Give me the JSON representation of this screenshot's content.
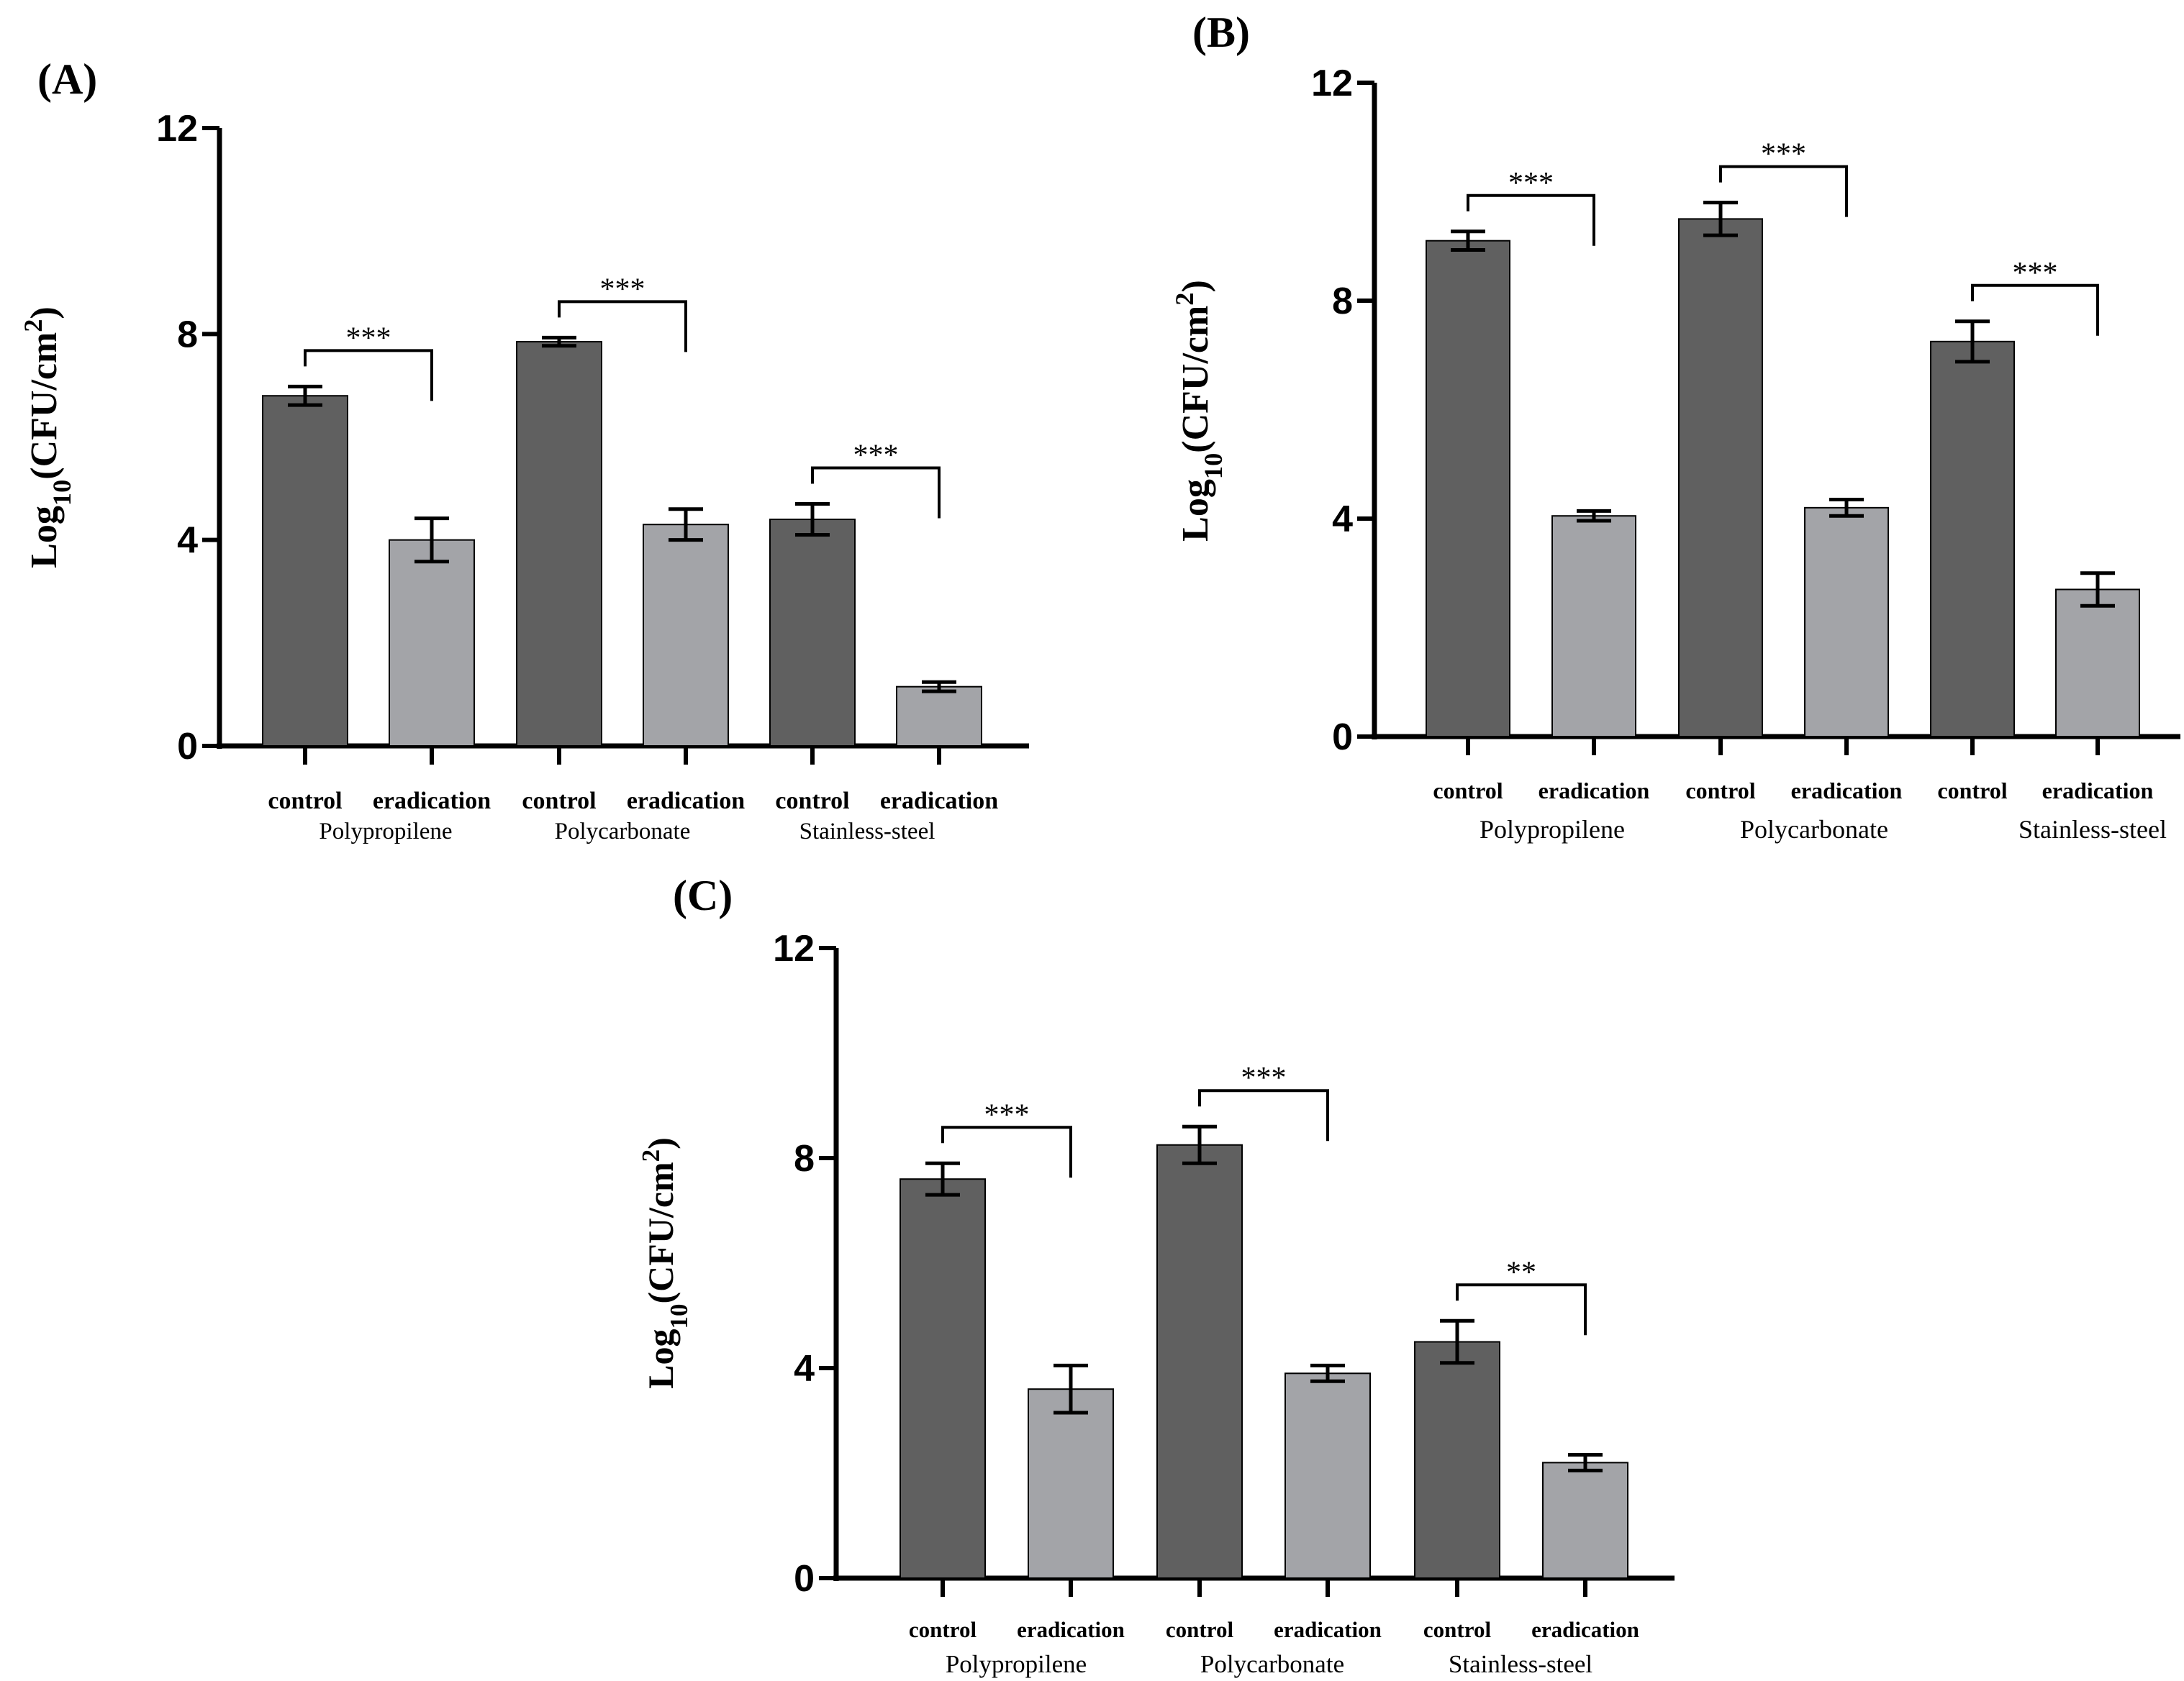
{
  "figure": {
    "background": "#ffffff"
  },
  "colors": {
    "control": "#606060",
    "eradication": "#a3a4a8",
    "axis": "#000000"
  },
  "chart_data": [
    {
      "panel": "(A)",
      "type": "bar",
      "ylabel": {
        "main": "Log",
        "sub": "10",
        "unit": "(CFU/cm",
        "sup": "2",
        "close": ")"
      },
      "ylim": [
        0,
        12
      ],
      "yticks": [
        "0",
        "4",
        "8",
        "12"
      ],
      "categories": [
        "control",
        "eradication",
        "control",
        "eradication",
        "control",
        "eradication"
      ],
      "groups": [
        "Polypropilene",
        "Polycarbonate",
        "Stainless-steel"
      ],
      "values": [
        6.8,
        4.0,
        7.85,
        4.3,
        4.4,
        1.15
      ],
      "errors": [
        0.18,
        0.42,
        0.08,
        0.3,
        0.3,
        0.09
      ],
      "significance": [
        "***",
        "***",
        "***"
      ]
    },
    {
      "panel": "(B)",
      "type": "bar",
      "ylabel": {
        "main": "Log",
        "sub": "10",
        "unit": "(CFU/cm",
        "sup": "2",
        "close": ")"
      },
      "ylim": [
        0,
        12
      ],
      "yticks": [
        "0",
        "4",
        "8",
        "12"
      ],
      "categories": [
        "control",
        "eradication",
        "control",
        "eradication",
        "control",
        "eradication"
      ],
      "groups": [
        "Polypropilene",
        "Polycarbonate",
        "Stainless-steel"
      ],
      "values": [
        9.1,
        4.05,
        9.5,
        4.2,
        7.25,
        2.7
      ],
      "errors": [
        0.17,
        0.09,
        0.3,
        0.15,
        0.37,
        0.3
      ],
      "significance": [
        "***",
        "***",
        "***"
      ]
    },
    {
      "panel": "(C)",
      "type": "bar",
      "ylabel": {
        "main": "Log",
        "sub": "10",
        "unit": "(CFU/cm",
        "sup": "2",
        "close": ")"
      },
      "ylim": [
        0,
        12
      ],
      "yticks": [
        "0",
        "4",
        "8",
        "12"
      ],
      "categories": [
        "control",
        "eradication",
        "control",
        "eradication",
        "control",
        "eradication"
      ],
      "groups": [
        "Polypropilene",
        "Polycarbonate",
        "Stainless-steel"
      ],
      "values": [
        7.6,
        3.6,
        8.25,
        3.9,
        4.5,
        2.2
      ],
      "errors": [
        0.3,
        0.45,
        0.35,
        0.15,
        0.4,
        0.15
      ],
      "significance": [
        "***",
        "***",
        "**"
      ]
    }
  ]
}
